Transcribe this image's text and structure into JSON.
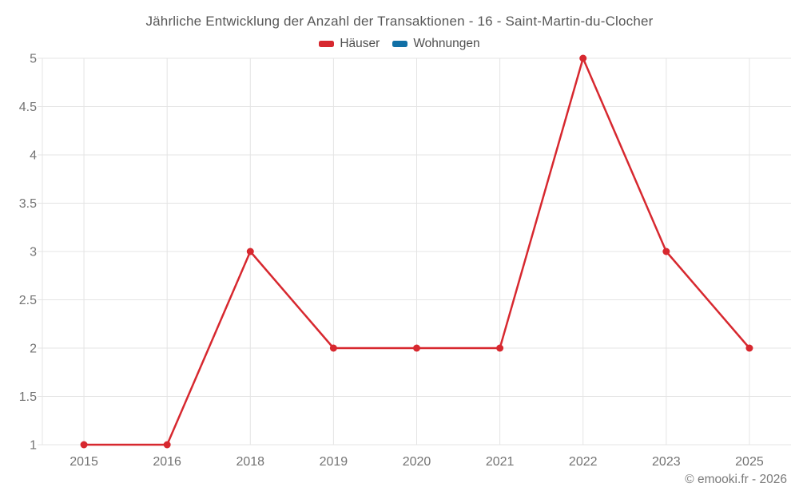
{
  "title": "Jährliche Entwicklung der Anzahl der Transaktionen - 16 - Saint-Martin-du-Clocher",
  "legend": {
    "items": [
      {
        "label": "Häuser",
        "color": "#d7282f"
      },
      {
        "label": "Wohnungen",
        "color": "#1170a6"
      }
    ]
  },
  "footer": {
    "copyright": "© emooki.fr - 2026"
  },
  "colors": {
    "series_red": "#d7282f",
    "series_blue": "#1170a6",
    "gridline": "#e4e4e4",
    "axis_label": "#737373",
    "title_text": "#575757",
    "footer_text": "#7a7a7a"
  },
  "chart_data": {
    "type": "line",
    "title": "Jährliche Entwicklung der Anzahl der Transaktionen - 16 - Saint-Martin-du-Clocher",
    "categories": [
      "2015",
      "2016",
      "2018",
      "2019",
      "2020",
      "2021",
      "2022",
      "2023",
      "2025"
    ],
    "series": [
      {
        "name": "Häuser",
        "color": "#d7282f",
        "values": [
          1,
          1,
          3,
          2,
          2,
          2,
          5,
          3,
          2
        ]
      },
      {
        "name": "Wohnungen",
        "color": "#1170a6",
        "values": []
      }
    ],
    "xlabel": "",
    "ylabel": "",
    "ylim": [
      1,
      5
    ],
    "yticks": [
      "1",
      "1.5",
      "2",
      "2.5",
      "3",
      "3.5",
      "4",
      "4.5",
      "5"
    ],
    "grid": true,
    "legend_position": "top",
    "marker": "circle"
  }
}
